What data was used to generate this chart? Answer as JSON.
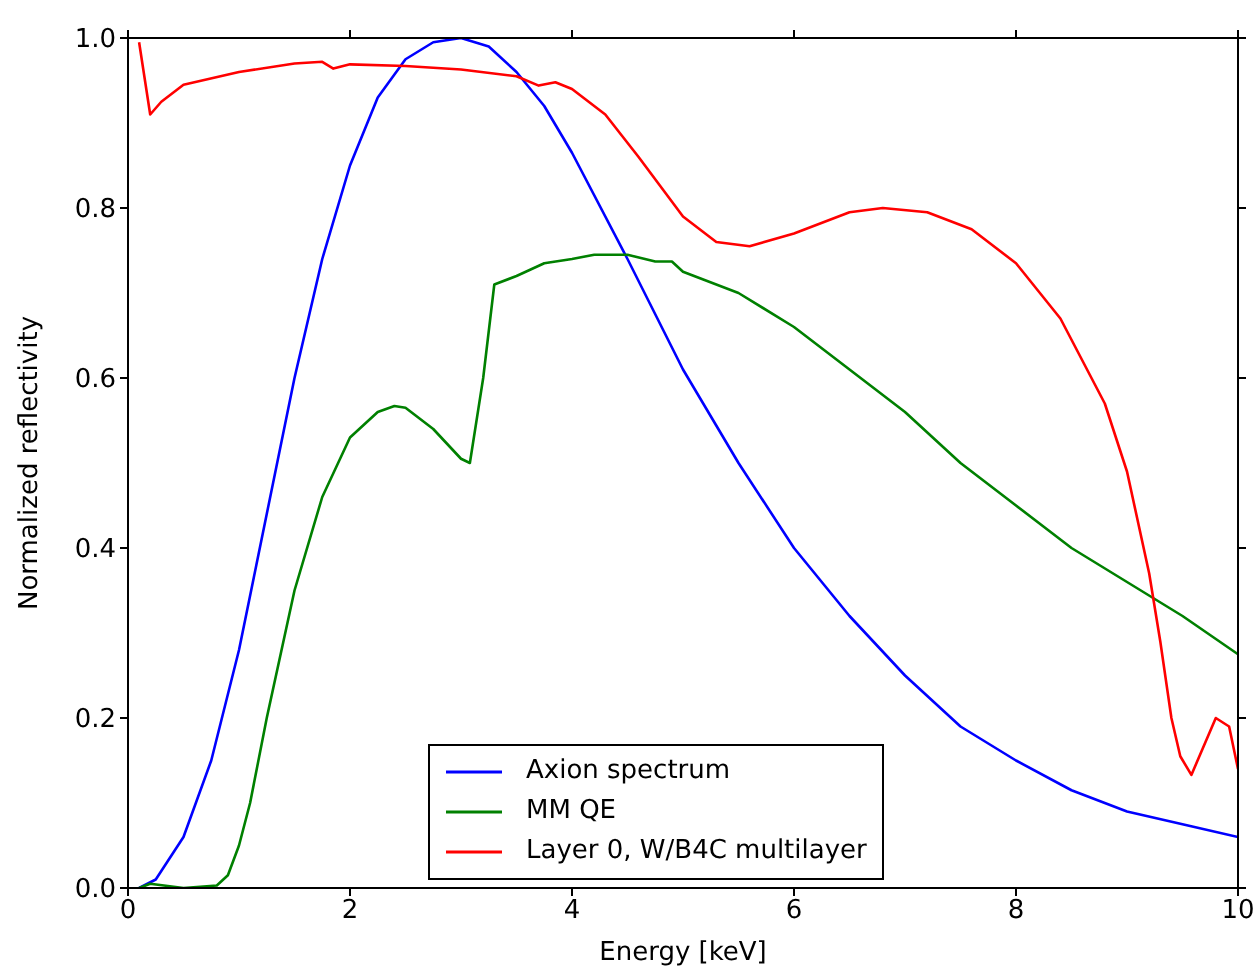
{
  "chart_data": {
    "type": "line",
    "xlabel": "Energy [keV]",
    "ylabel": "Normalized reflectivity",
    "xlim": [
      0,
      10
    ],
    "xticks": [
      0,
      2,
      4,
      6,
      8,
      10
    ],
    "ylim": [
      0,
      1
    ],
    "yticks": [
      {
        "value": 0,
        "label": "0.0"
      },
      0.2,
      0.4,
      0.6,
      0.8,
      {
        "value": 1,
        "label": "1.0"
      }
    ],
    "grid": false,
    "legend": "bottom",
    "marker": "none",
    "line_style": "solid",
    "series": [
      {
        "name": "Axion spectrum",
        "color": "#0000ff",
        "x": [
          0.1,
          0.25,
          0.5,
          0.75,
          1,
          1.25,
          1.5,
          1.75,
          2,
          2.25,
          2.5,
          2.75,
          3,
          3.25,
          3.5,
          3.75,
          4,
          4.5,
          5,
          5.5,
          6,
          6.5,
          7,
          7.5,
          8,
          8.5,
          9,
          9.5,
          10
        ],
        "values": [
          0,
          0.01,
          0.06,
          0.15,
          0.28,
          0.44,
          0.6,
          0.74,
          0.85,
          0.93,
          0.975,
          0.995,
          1.0,
          0.99,
          0.96,
          0.92,
          0.865,
          0.74,
          0.61,
          0.5,
          0.4,
          0.32,
          0.25,
          0.19,
          0.15,
          0.115,
          0.09,
          0.075,
          0.06
        ]
      },
      {
        "name": "MM QE",
        "color": "#008000",
        "x": [
          0.1,
          0.2,
          0.5,
          0.8,
          0.9,
          1,
          1.1,
          1.25,
          1.5,
          1.75,
          2,
          2.25,
          2.4,
          2.5,
          2.75,
          3,
          3.08,
          3.2,
          3.3,
          3.5,
          3.75,
          4,
          4.2,
          4.5,
          4.75,
          4.9,
          5,
          5.5,
          6,
          6.5,
          7,
          7.25,
          7.5,
          8,
          8.5,
          9,
          9.5,
          10
        ],
        "values": [
          0,
          0.005,
          0,
          0.003,
          0.015,
          0.05,
          0.1,
          0.2,
          0.35,
          0.46,
          0.53,
          0.56,
          0.567,
          0.565,
          0.54,
          0.505,
          0.5,
          0.6,
          0.71,
          0.72,
          0.735,
          0.74,
          0.745,
          0.745,
          0.737,
          0.737,
          0.725,
          0.7,
          0.66,
          0.61,
          0.56,
          0.53,
          0.5,
          0.45,
          0.4,
          0.36,
          0.32,
          0.275
        ]
      },
      {
        "name": "Layer 0, W/B4C multilayer",
        "color": "#ff0000",
        "x": [
          0.1,
          0.2,
          0.3,
          0.5,
          1,
          1.5,
          1.75,
          1.85,
          2,
          2.5,
          3,
          3.5,
          3.7,
          3.85,
          4,
          4.3,
          4.6,
          5,
          5.3,
          5.6,
          6,
          6.5,
          6.8,
          7.2,
          7.6,
          8,
          8.4,
          8.8,
          9.0,
          9.2,
          9.3,
          9.4,
          9.48,
          9.58,
          9.8,
          9.92,
          10
        ],
        "values": [
          0.995,
          0.91,
          0.925,
          0.945,
          0.96,
          0.97,
          0.972,
          0.964,
          0.969,
          0.967,
          0.963,
          0.955,
          0.944,
          0.948,
          0.94,
          0.91,
          0.86,
          0.79,
          0.76,
          0.755,
          0.77,
          0.795,
          0.8,
          0.795,
          0.775,
          0.735,
          0.67,
          0.57,
          0.49,
          0.37,
          0.29,
          0.2,
          0.155,
          0.133,
          0.2,
          0.19,
          0.14
        ]
      }
    ]
  }
}
